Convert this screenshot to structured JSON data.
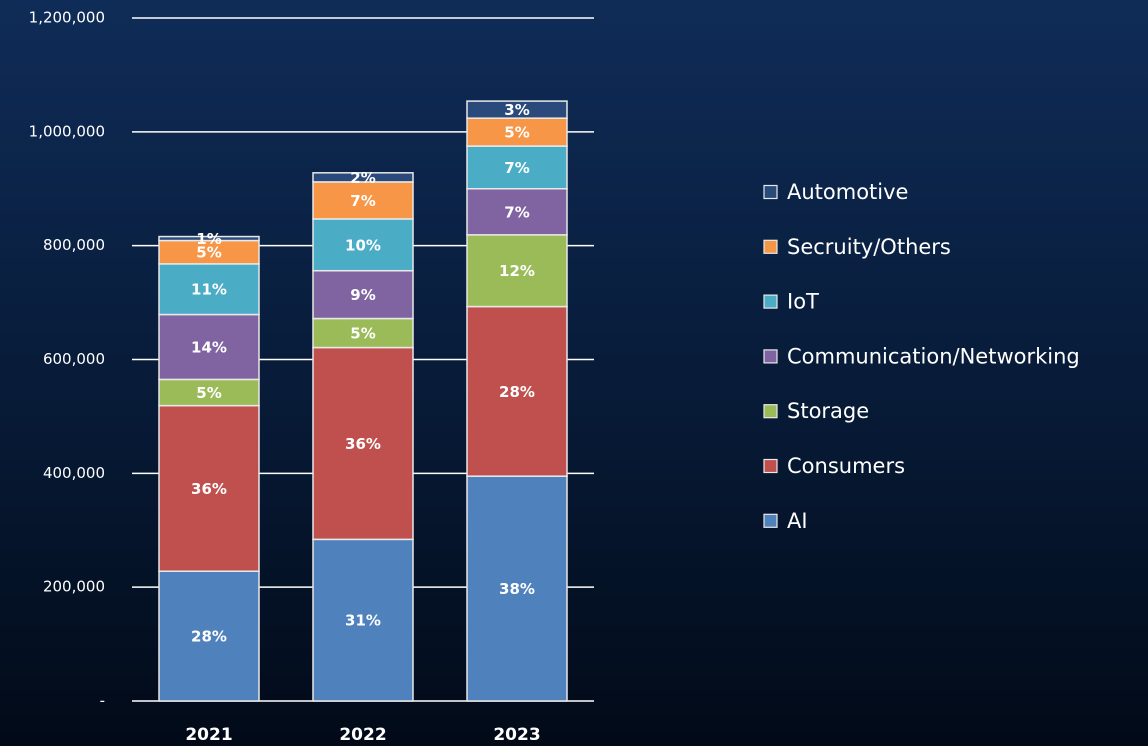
{
  "chart_data": {
    "type": "stacked_bar",
    "categories": [
      "2021",
      "2022",
      "2023"
    ],
    "series": [
      {
        "name": "AI",
        "color": "#4f81bd",
        "values": [
          228000,
          284000,
          395000
        ],
        "labels": [
          "28%",
          "31%",
          "38%"
        ]
      },
      {
        "name": "Consumers",
        "color": "#c0504d",
        "values": [
          291000,
          337000,
          298000
        ],
        "labels": [
          "36%",
          "36%",
          "28%"
        ]
      },
      {
        "name": "Storage",
        "color": "#9bbb59",
        "values": [
          46000,
          51000,
          126000
        ],
        "labels": [
          "5%",
          "5%",
          "12%"
        ]
      },
      {
        "name": "Communication/Networking",
        "color": "#8064a2",
        "values": [
          114000,
          84000,
          81000
        ],
        "labels": [
          "14%",
          "9%",
          "7%"
        ]
      },
      {
        "name": "IoT",
        "color": "#4bacc6",
        "values": [
          89000,
          91000,
          75000
        ],
        "labels": [
          "11%",
          "10%",
          "7%"
        ]
      },
      {
        "name": "Secruity/Others",
        "color": "#f79646",
        "values": [
          41000,
          65000,
          49000
        ],
        "labels": [
          "5%",
          "7%",
          "5%"
        ]
      },
      {
        "name": "Automotive",
        "color": "#2b4a7c",
        "values": [
          7000,
          16000,
          30000
        ],
        "labels": [
          "1%",
          "2%",
          "3%"
        ]
      }
    ],
    "ylim": [
      0,
      1200000
    ],
    "yticks": [
      {
        "value": 0,
        "label": "-"
      },
      {
        "value": 200000,
        "label": "200,000"
      },
      {
        "value": 400000,
        "label": "400,000"
      },
      {
        "value": 600000,
        "label": "600,000"
      },
      {
        "value": 800000,
        "label": "800,000"
      },
      {
        "value": 1000000,
        "label": "1,000,000"
      },
      {
        "value": 1200000,
        "label": "1,200,000"
      }
    ],
    "grid": true,
    "legend": "right"
  }
}
